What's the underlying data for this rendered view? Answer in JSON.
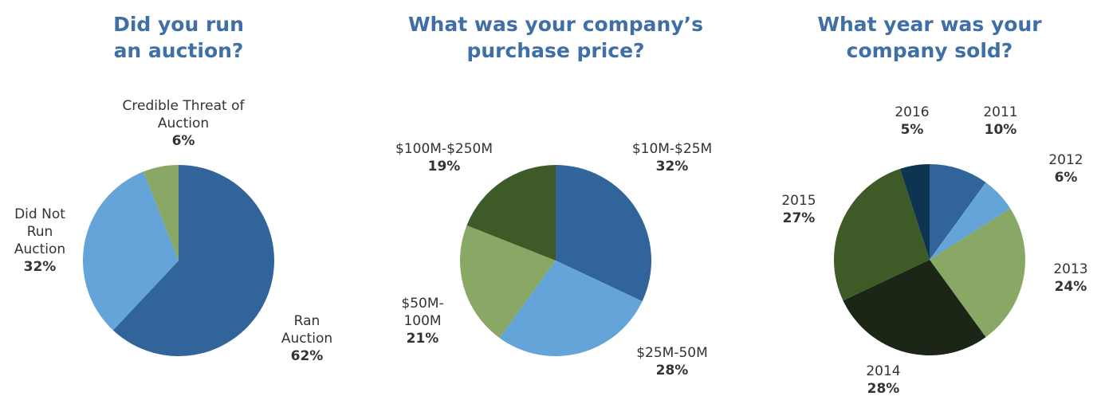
{
  "chart_data": [
    {
      "type": "pie",
      "title": "Did you run an auction?",
      "categories": [
        "Ran Auction",
        "Did Not Run Auction",
        "Credible Threat of Auction"
      ],
      "values": [
        62,
        32,
        6
      ],
      "value_labels": [
        "62%",
        "32%",
        "6%"
      ],
      "colors": [
        "#31649a",
        "#64a4d9",
        "#8aa865"
      ]
    },
    {
      "type": "pie",
      "title": "What was your company’s purchase price?",
      "categories": [
        "$10M-$25M",
        "$25M-50M",
        "$50M-100M",
        "$100M-$250M"
      ],
      "values": [
        32,
        28,
        21,
        19
      ],
      "value_labels": [
        "32%",
        "28%",
        "21%",
        "19%"
      ],
      "colors": [
        "#31649a",
        "#64a4d9",
        "#8aa865",
        "#3e5b27"
      ]
    },
    {
      "type": "pie",
      "title": "What year was your company sold?",
      "categories": [
        "2011",
        "2012",
        "2013",
        "2014",
        "2015",
        "2016"
      ],
      "values": [
        10,
        6,
        24,
        28,
        27,
        5
      ],
      "value_labels": [
        "10%",
        "6%",
        "24%",
        "28%",
        "27%",
        "5%"
      ],
      "colors": [
        "#31649a",
        "#64a4d9",
        "#8aa865",
        "#1b2616",
        "#3e5b27",
        "#0d3552"
      ]
    }
  ]
}
